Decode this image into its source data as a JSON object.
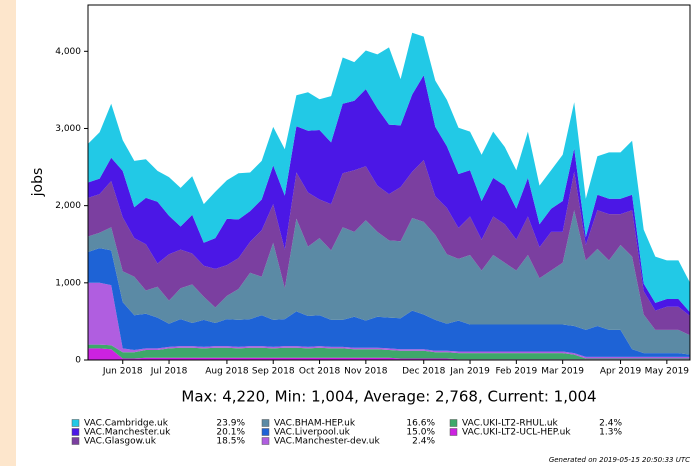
{
  "chart_data": {
    "type": "stacked_area",
    "y_label": "jobs",
    "subtitle": "Max: 4,220, Min: 1,004, Average: 2,768, Current: 1,004",
    "footer": "Generated on 2019-05-15 20:50:33 UTC",
    "categories": [
      null,
      null,
      null,
      "Jun 2018",
      null,
      null,
      null,
      "Jul 2018",
      null,
      null,
      null,
      null,
      "Aug 2018",
      null,
      null,
      null,
      "Sep 2018",
      null,
      null,
      null,
      "Oct 2018",
      null,
      null,
      null,
      "Nov 2018",
      null,
      null,
      null,
      null,
      "Dec 2018",
      null,
      null,
      null,
      "Jan 2019",
      null,
      null,
      null,
      "Feb 2019",
      null,
      null,
      null,
      "Mar 2019",
      null,
      null,
      null,
      null,
      "Apr 2019",
      null,
      null,
      null,
      "May 2019",
      null,
      null
    ],
    "ylim": [
      0,
      4600
    ],
    "yticks": [
      0,
      {
        "value": 1000,
        "label": "1,000"
      },
      {
        "value": 2000,
        "label": "2,000"
      },
      {
        "value": 3000,
        "label": "3,000"
      },
      {
        "value": 4000,
        "label": "4,000"
      }
    ],
    "series": [
      {
        "name": "VAC.UKI-LT2-UCL-HEP.uk",
        "share": "1.3%",
        "color": "#cc22e0",
        "values": [
          150,
          150,
          140,
          20,
          20,
          30,
          30,
          30,
          30,
          30,
          30,
          30,
          30,
          30,
          30,
          30,
          30,
          30,
          30,
          30,
          30,
          30,
          30,
          30,
          30,
          30,
          30,
          20,
          20,
          20,
          20,
          20,
          10,
          10,
          10,
          10,
          10,
          10,
          10,
          10,
          10,
          10,
          10,
          10,
          10,
          10,
          10,
          10,
          10,
          10,
          10,
          10,
          10
        ]
      },
      {
        "name": "VAC.UKI-LT2-RHUL.uk",
        "share": "2.4%",
        "color": "#3ea86a",
        "values": [
          50,
          50,
          50,
          80,
          80,
          100,
          100,
          120,
          130,
          130,
          120,
          130,
          130,
          120,
          130,
          130,
          120,
          130,
          130,
          120,
          130,
          120,
          120,
          110,
          110,
          110,
          100,
          100,
          100,
          100,
          80,
          80,
          80,
          80,
          80,
          80,
          80,
          80,
          80,
          80,
          80,
          80,
          60,
          10,
          10,
          10,
          10,
          10,
          10,
          10,
          10,
          10,
          10
        ]
      },
      {
        "name": "VAC.Manchester-dev.uk",
        "share": "2.4%",
        "color": "#b05ee0",
        "values": [
          800,
          800,
          780,
          50,
          30,
          20,
          20,
          20,
          20,
          20,
          20,
          20,
          20,
          20,
          20,
          20,
          20,
          20,
          20,
          20,
          20,
          20,
          20,
          20,
          20,
          20,
          20,
          20,
          20,
          20,
          20,
          20,
          20,
          20,
          20,
          20,
          20,
          20,
          20,
          20,
          20,
          20,
          20,
          20,
          20,
          20,
          20,
          20,
          20,
          20,
          20,
          20,
          20
        ]
      },
      {
        "name": "VAC.Liverpool.uk",
        "share": "15.0%",
        "color": "#1e63d6",
        "values": [
          400,
          450,
          450,
          600,
          450,
          450,
          400,
          300,
          350,
          300,
          350,
          300,
          350,
          350,
          350,
          400,
          350,
          350,
          450,
          400,
          400,
          350,
          350,
          400,
          350,
          400,
          400,
          400,
          500,
          450,
          400,
          350,
          400,
          350,
          350,
          350,
          350,
          350,
          350,
          350,
          350,
          350,
          350,
          350,
          400,
          350,
          350,
          100,
          50,
          50,
          50,
          50,
          30
        ]
      },
      {
        "name": "VAC.BHAM-HEP.uk",
        "share": "16.6%",
        "color": "#5b8aa5",
        "values": [
          200,
          200,
          300,
          400,
          500,
          300,
          400,
          300,
          400,
          500,
          300,
          200,
          300,
          400,
          600,
          500,
          1000,
          400,
          1200,
          900,
          1000,
          900,
          1200,
          1100,
          1300,
          1100,
          1000,
          1000,
          1200,
          1200,
          1100,
          900,
          800,
          900,
          700,
          900,
          800,
          700,
          900,
          600,
          700,
          800,
          1500,
          900,
          1000,
          900,
          1100,
          1200,
          500,
          300,
          300,
          300,
          250
        ]
      },
      {
        "name": "VAC.Glasgow.uk",
        "share": "18.5%",
        "color": "#7b3fa0",
        "values": [
          500,
          500,
          600,
          700,
          500,
          600,
          300,
          600,
          500,
          400,
          400,
          500,
          400,
          400,
          400,
          600,
          500,
          500,
          600,
          700,
          500,
          600,
          700,
          800,
          700,
          600,
          600,
          700,
          600,
          800,
          500,
          600,
          400,
          500,
          400,
          500,
          500,
          400,
          500,
          400,
          500,
          400,
          500,
          200,
          500,
          600,
          400,
          600,
          300,
          250,
          300,
          300,
          250
        ]
      },
      {
        "name": "VAC.Manchester.uk",
        "share": "20.1%",
        "color": "#4b17e6",
        "values": [
          200,
          200,
          300,
          600,
          400,
          600,
          800,
          500,
          300,
          500,
          300,
          400,
          600,
          500,
          400,
          400,
          500,
          700,
          600,
          800,
          900,
          800,
          900,
          900,
          1000,
          1000,
          900,
          800,
          1000,
          1100,
          900,
          800,
          700,
          600,
          500,
          500,
          500,
          400,
          500,
          300,
          300,
          400,
          300,
          100,
          200,
          200,
          200,
          200,
          100,
          100,
          100,
          100,
          50
        ]
      },
      {
        "name": "VAC.Cambridge.uk",
        "share": "23.9%",
        "color": "#22c9e6",
        "values": [
          500,
          600,
          700,
          400,
          600,
          500,
          400,
          500,
          500,
          500,
          500,
          600,
          500,
          600,
          500,
          500,
          500,
          600,
          400,
          500,
          400,
          600,
          600,
          500,
          500,
          700,
          1000,
          600,
          800,
          500,
          600,
          600,
          600,
          500,
          600,
          600,
          500,
          500,
          600,
          500,
          500,
          600,
          600,
          500,
          500,
          600,
          600,
          700,
          700,
          600,
          500,
          500,
          380
        ]
      }
    ]
  }
}
